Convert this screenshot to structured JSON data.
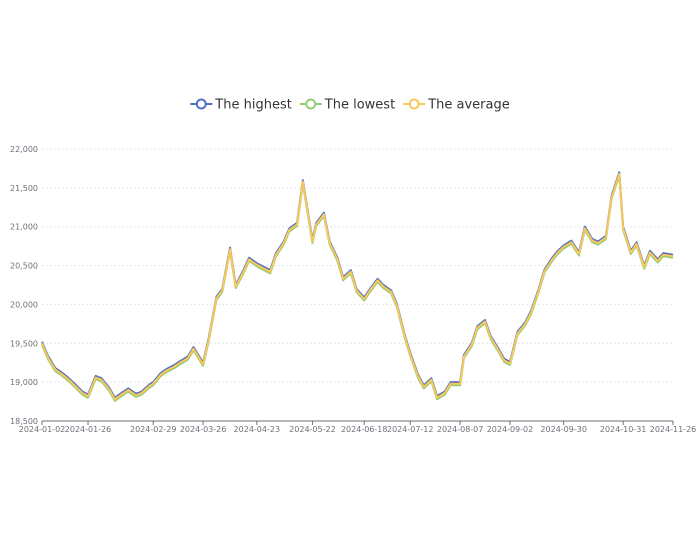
{
  "chart_data": {
    "type": "line",
    "title": "",
    "xlabel": "",
    "ylabel": "",
    "ylim": [
      18500,
      22000
    ],
    "xlim": [
      "2024-01-02",
      "2024-11-26"
    ],
    "grid": {
      "y": true,
      "x": false
    },
    "legend_position": "top-center",
    "y_ticks": [
      "18,500",
      "19,000",
      "19,500",
      "20,000",
      "20,500",
      "21,000",
      "21,500",
      "22,000"
    ],
    "x_ticks": [
      "2024-01-02",
      "2024-01-26",
      "2024-02-29",
      "2024-03-26",
      "2024-04-23",
      "2024-05-22",
      "2024-06-18",
      "2024-07-12",
      "2024-08-07",
      "2024-09-02",
      "2024-09-30",
      "2024-10-31",
      "2024-11-26"
    ],
    "x": [
      "2024-01-02",
      "2024-01-05",
      "2024-01-09",
      "2024-01-12",
      "2024-01-16",
      "2024-01-19",
      "2024-01-23",
      "2024-01-26",
      "2024-01-30",
      "2024-02-02",
      "2024-02-06",
      "2024-02-09",
      "2024-02-13",
      "2024-02-16",
      "2024-02-20",
      "2024-02-23",
      "2024-02-27",
      "2024-02-29",
      "2024-03-04",
      "2024-03-07",
      "2024-03-11",
      "2024-03-14",
      "2024-03-18",
      "2024-03-21",
      "2024-03-26",
      "2024-03-29",
      "2024-04-02",
      "2024-04-05",
      "2024-04-09",
      "2024-04-12",
      "2024-04-16",
      "2024-04-19",
      "2024-04-23",
      "2024-04-26",
      "2024-04-30",
      "2024-05-03",
      "2024-05-07",
      "2024-05-10",
      "2024-05-14",
      "2024-05-17",
      "2024-05-22",
      "2024-05-24",
      "2024-05-28",
      "2024-05-31",
      "2024-06-04",
      "2024-06-07",
      "2024-06-11",
      "2024-06-14",
      "2024-06-18",
      "2024-06-21",
      "2024-06-25",
      "2024-06-28",
      "2024-07-02",
      "2024-07-05",
      "2024-07-09",
      "2024-07-12",
      "2024-07-16",
      "2024-07-19",
      "2024-07-23",
      "2024-07-26",
      "2024-07-30",
      "2024-08-02",
      "2024-08-07",
      "2024-08-09",
      "2024-08-13",
      "2024-08-16",
      "2024-08-20",
      "2024-08-23",
      "2024-08-27",
      "2024-08-30",
      "2024-09-02",
      "2024-09-06",
      "2024-09-10",
      "2024-09-13",
      "2024-09-17",
      "2024-09-20",
      "2024-09-24",
      "2024-09-27",
      "2024-09-30",
      "2024-10-04",
      "2024-10-08",
      "2024-10-11",
      "2024-10-15",
      "2024-10-18",
      "2024-10-22",
      "2024-10-25",
      "2024-10-29",
      "2024-10-31",
      "2024-11-04",
      "2024-11-07",
      "2024-11-11",
      "2024-11-14",
      "2024-11-18",
      "2024-11-21",
      "2024-11-26"
    ],
    "series": [
      {
        "name": "The highest",
        "color": "#5470c6",
        "values": [
          19520,
          19340,
          19180,
          19130,
          19050,
          18980,
          18880,
          18840,
          19080,
          19050,
          18930,
          18800,
          18870,
          18920,
          18850,
          18880,
          18970,
          19000,
          19120,
          19170,
          19220,
          19270,
          19330,
          19450,
          19250,
          19580,
          20100,
          20200,
          20730,
          20250,
          20440,
          20600,
          20530,
          20490,
          20440,
          20660,
          20810,
          20980,
          21050,
          21600,
          20830,
          21050,
          21180,
          20810,
          20600,
          20350,
          20440,
          20200,
          20090,
          20200,
          20330,
          20250,
          20180,
          20010,
          19620,
          19380,
          19100,
          18960,
          19050,
          18820,
          18880,
          19000,
          19000,
          19350,
          19500,
          19720,
          19800,
          19590,
          19430,
          19300,
          19260,
          19650,
          19770,
          19920,
          20200,
          20450,
          20600,
          20690,
          20760,
          20820,
          20670,
          21000,
          20840,
          20810,
          20880,
          21400,
          21700,
          21000,
          20690,
          20800,
          20500,
          20690,
          20580,
          20660,
          20640
        ]
      },
      {
        "name": "The lowest",
        "color": "#91cc75",
        "values": [
          19480,
          19300,
          19140,
          19090,
          19010,
          18940,
          18840,
          18800,
          19040,
          19010,
          18890,
          18760,
          18830,
          18880,
          18810,
          18840,
          18930,
          18960,
          19080,
          19130,
          19180,
          19230,
          19290,
          19410,
          19210,
          19540,
          20060,
          20160,
          20690,
          20210,
          20400,
          20560,
          20490,
          20450,
          20400,
          20620,
          20770,
          20940,
          21010,
          21560,
          20790,
          21010,
          21140,
          20770,
          20560,
          20310,
          20400,
          20160,
          20050,
          20160,
          20290,
          20210,
          20140,
          19970,
          19580,
          19340,
          19060,
          18920,
          19010,
          18780,
          18840,
          18960,
          18960,
          19310,
          19460,
          19680,
          19760,
          19550,
          19390,
          19260,
          19220,
          19610,
          19730,
          19880,
          20160,
          20410,
          20560,
          20650,
          20720,
          20780,
          20630,
          20960,
          20800,
          20770,
          20840,
          21360,
          21660,
          20960,
          20650,
          20760,
          20460,
          20650,
          20540,
          20620,
          20600
        ]
      },
      {
        "name": "The average",
        "color": "#fac858",
        "values": [
          19500,
          19320,
          19160,
          19110,
          19030,
          18960,
          18860,
          18820,
          19060,
          19030,
          18910,
          18780,
          18850,
          18900,
          18830,
          18860,
          18950,
          18980,
          19100,
          19150,
          19200,
          19250,
          19310,
          19430,
          19230,
          19560,
          20080,
          20180,
          20710,
          20230,
          20420,
          20580,
          20510,
          20470,
          20420,
          20640,
          20790,
          20960,
          21030,
          21580,
          20810,
          21030,
          21160,
          20790,
          20580,
          20330,
          20420,
          20180,
          20070,
          20180,
          20310,
          20230,
          20160,
          19990,
          19600,
          19360,
          19080,
          18940,
          19030,
          18800,
          18860,
          18980,
          18980,
          19330,
          19480,
          19700,
          19780,
          19570,
          19410,
          19280,
          19240,
          19630,
          19750,
          19900,
          20180,
          20430,
          20580,
          20670,
          20740,
          20800,
          20650,
          20980,
          20820,
          20790,
          20860,
          21380,
          21680,
          20980,
          20670,
          20780,
          20480,
          20670,
          20560,
          20640,
          20620
        ]
      }
    ]
  }
}
